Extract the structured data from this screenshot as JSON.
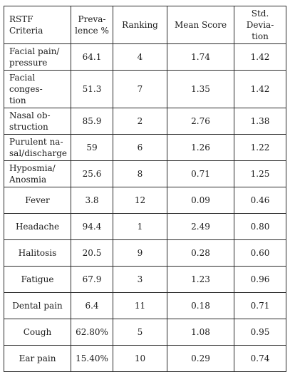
{
  "table": {
    "headers": [
      "RSTF Criteria",
      "Preva-lence %",
      "Ranking",
      "Mean Score",
      "Std. Devia-tion"
    ],
    "header_lines": [
      [
        "RSTF Criteria"
      ],
      [
        "Preva-",
        "lence %"
      ],
      [
        "Ranking"
      ],
      [
        "Mean Score"
      ],
      [
        "Std. Devia-",
        "tion"
      ]
    ],
    "rows": [
      {
        "criteria": [
          "Facial pain/",
          "pressure"
        ],
        "prevalence": "64.1",
        "ranking": "4",
        "mean": "1.74",
        "sd": "1.42"
      },
      {
        "criteria": [
          "Facial conges-",
          "tion"
        ],
        "prevalence": "51.3",
        "ranking": "7",
        "mean": "1.35",
        "sd": "1.42"
      },
      {
        "criteria": [
          "Nasal ob-",
          "struction"
        ],
        "prevalence": "85.9",
        "ranking": "2",
        "mean": "2.76",
        "sd": "1.38"
      },
      {
        "criteria": [
          "Purulent na-",
          "sal/discharge"
        ],
        "prevalence": "59",
        "ranking": "6",
        "mean": "1.26",
        "sd": "1.22"
      },
      {
        "criteria": [
          "Hyposmia/",
          "Anosmia"
        ],
        "prevalence": "25.6",
        "ranking": "8",
        "mean": "0.71",
        "sd": "1.25"
      },
      {
        "criteria": [
          "Fever"
        ],
        "prevalence": "3.8",
        "ranking": "12",
        "mean": "0.09",
        "sd": "0.46"
      },
      {
        "criteria": [
          "Headache"
        ],
        "prevalence": "94.4",
        "ranking": "1",
        "mean": "2.49",
        "sd": "0.80"
      },
      {
        "criteria": [
          "Halitosis"
        ],
        "prevalence": "20.5",
        "ranking": "9",
        "mean": "0.28",
        "sd": "0.60"
      },
      {
        "criteria": [
          "Fatigue"
        ],
        "prevalence": "67.9",
        "ranking": "3",
        "mean": "1.23",
        "sd": "0.96"
      },
      {
        "criteria": [
          "Dental pain"
        ],
        "prevalence": "6.4",
        "ranking": "11",
        "mean": "0.18",
        "sd": "0.71"
      },
      {
        "criteria": [
          "Cough"
        ],
        "prevalence": "62.80%",
        "ranking": "5",
        "mean": "1.08",
        "sd": "0.95"
      },
      {
        "criteria": [
          "Ear pain"
        ],
        "prevalence": "15.40%",
        "ranking": "10",
        "mean": "0.29",
        "sd": "0.74"
      }
    ]
  }
}
